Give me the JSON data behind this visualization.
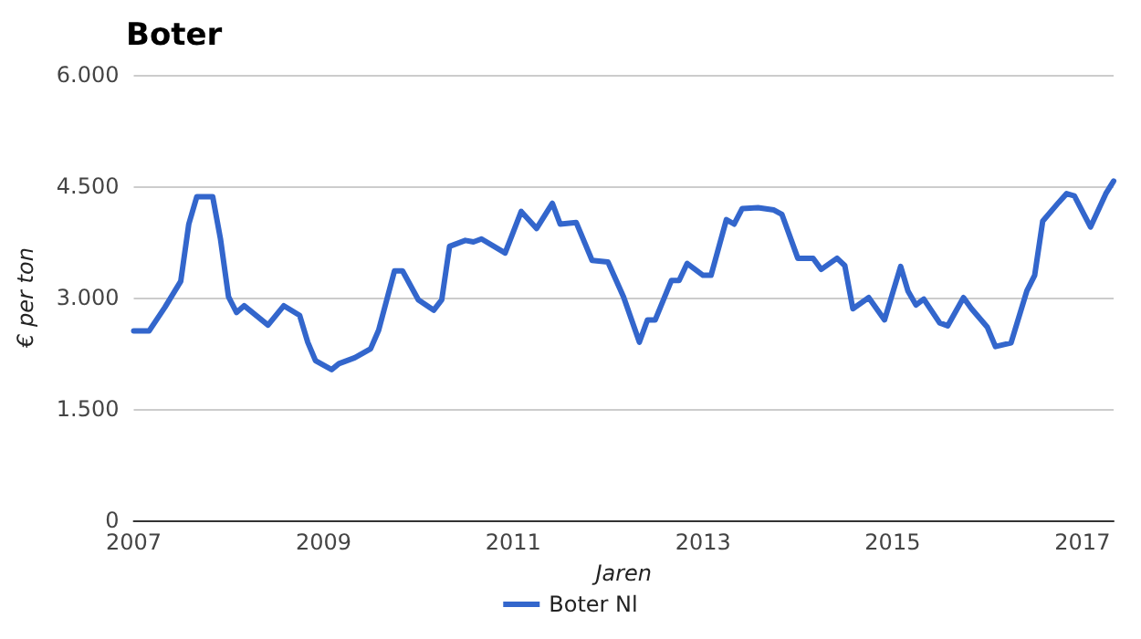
{
  "chart_data": {
    "type": "line",
    "title": "Boter",
    "xlabel": "Jaren",
    "ylabel": "€ per ton",
    "x": [
      "2007-01",
      "2007-03",
      "2007-05",
      "2007-07",
      "2007-08",
      "2007-09",
      "2007-11",
      "2007-12",
      "2008-01",
      "2008-02",
      "2008-03",
      "2008-06",
      "2008-08",
      "2008-10",
      "2008-11",
      "2008-12",
      "2009-02",
      "2009-03",
      "2009-05",
      "2009-07",
      "2009-08",
      "2009-10",
      "2009-11",
      "2010-01",
      "2010-03",
      "2010-04",
      "2010-05",
      "2010-07",
      "2010-08",
      "2010-09",
      "2010-12",
      "2011-02",
      "2011-04",
      "2011-06",
      "2011-07",
      "2011-09",
      "2011-11",
      "2012-01",
      "2012-03",
      "2012-05",
      "2012-06",
      "2012-07",
      "2012-09",
      "2012-10",
      "2012-11",
      "2013-01",
      "2013-02",
      "2013-04",
      "2013-05",
      "2013-06",
      "2013-08",
      "2013-10",
      "2013-11",
      "2014-01",
      "2014-03",
      "2014-04",
      "2014-06",
      "2014-07",
      "2014-08",
      "2014-10",
      "2014-12",
      "2015-02",
      "2015-03",
      "2015-04",
      "2015-05",
      "2015-07",
      "2015-08",
      "2015-10",
      "2015-11",
      "2016-01",
      "2016-02",
      "2016-04",
      "2016-06",
      "2016-07",
      "2016-08",
      "2016-10",
      "2016-11",
      "2016-12",
      "2017-02",
      "2017-04",
      "2017-05"
    ],
    "series": [
      {
        "name": "Boter Nl",
        "color": "#3366cc",
        "values": [
          2550,
          2550,
          2870,
          3220,
          3990,
          4360,
          4360,
          3790,
          3010,
          2800,
          2890,
          2630,
          2890,
          2760,
          2400,
          2150,
          2030,
          2110,
          2190,
          2310,
          2560,
          3360,
          3360,
          2970,
          2830,
          2970,
          3690,
          3770,
          3750,
          3790,
          3600,
          4160,
          3930,
          4270,
          3990,
          4010,
          3500,
          3480,
          3010,
          2400,
          2700,
          2700,
          3230,
          3230,
          3460,
          3300,
          3300,
          4050,
          3990,
          4200,
          4210,
          4180,
          4120,
          3530,
          3530,
          3380,
          3530,
          3430,
          2850,
          3000,
          2700,
          3420,
          3090,
          2900,
          2980,
          2660,
          2620,
          3000,
          2850,
          2600,
          2340,
          2390,
          3090,
          3300,
          4030,
          4280,
          4400,
          4370,
          3950,
          4400,
          4570
        ]
      }
    ],
    "xlim": [
      "2007-01",
      "2017-05"
    ],
    "xticks": [
      "2007",
      "2009",
      "2011",
      "2013",
      "2015",
      "2017"
    ],
    "ylim": [
      0,
      6000
    ],
    "yticks": [
      0,
      {
        "value": 1500,
        "label": "1.500"
      },
      {
        "value": 3000,
        "label": "3.000"
      },
      {
        "value": 4500,
        "label": "4.500"
      },
      {
        "value": 6000,
        "label": "6.000"
      }
    ],
    "grid": "y",
    "legend": "bottom",
    "marker": "none",
    "line_style": "solid"
  }
}
